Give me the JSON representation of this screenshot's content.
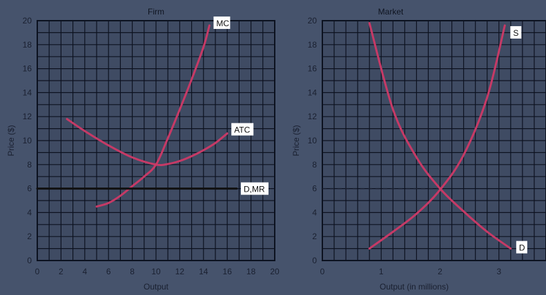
{
  "chart_data": [
    {
      "type": "line",
      "title": "Firm",
      "xlabel": "Output",
      "ylabel": "Price ($)",
      "xlim": [
        0,
        20
      ],
      "ylim": [
        0,
        20
      ],
      "xticks": [
        0,
        2,
        4,
        6,
        8,
        10,
        12,
        14,
        16,
        18,
        20
      ],
      "yticks": [
        0,
        2,
        4,
        6,
        8,
        10,
        12,
        14,
        16,
        18,
        20
      ],
      "grid": true,
      "series": [
        {
          "name": "MC",
          "color": "#c63a66",
          "x": [
            5,
            6,
            7,
            8,
            9,
            10,
            11,
            12,
            13,
            14,
            14.5
          ],
          "y": [
            4.5,
            4.8,
            5.4,
            6.2,
            7.0,
            8.0,
            10.2,
            12.6,
            15.1,
            17.8,
            19.6
          ]
        },
        {
          "name": "ATC",
          "color": "#c63a66",
          "x": [
            2.5,
            4,
            6,
            8,
            10,
            11,
            12,
            13,
            14,
            15,
            16
          ],
          "y": [
            11.8,
            10.8,
            9.6,
            8.6,
            8.0,
            8.05,
            8.3,
            8.7,
            9.2,
            9.8,
            10.6
          ]
        },
        {
          "name": "D,MR",
          "color": "#111111",
          "x": [
            0,
            16.8
          ],
          "y": [
            6,
            6
          ]
        }
      ]
    },
    {
      "type": "line",
      "title": "Market",
      "xlabel": "Output (in millions)",
      "ylabel": "Price ($)",
      "xlim": [
        0,
        3.8
      ],
      "ylim": [
        0,
        20
      ],
      "xticks": [
        0,
        1,
        2,
        3
      ],
      "yticks": [
        0,
        2,
        4,
        6,
        8,
        10,
        12,
        14,
        16,
        18,
        20
      ],
      "grid": true,
      "series": [
        {
          "name": "S",
          "color": "#c63a66",
          "x": [
            0.8,
            1.2,
            1.6,
            2.0,
            2.4,
            2.8,
            3.1
          ],
          "y": [
            1.0,
            2.4,
            3.9,
            5.9,
            8.8,
            13.6,
            19.6
          ]
        },
        {
          "name": "D",
          "color": "#c63a66",
          "x": [
            0.8,
            1.2,
            1.6,
            2.0,
            2.4,
            2.8,
            3.2
          ],
          "y": [
            19.8,
            12.6,
            8.6,
            6.0,
            4.1,
            2.4,
            1.0
          ]
        }
      ],
      "reference_lines": [
        {
          "y": 6,
          "x_from": 0,
          "x_to": 2,
          "style": "dashed"
        }
      ]
    }
  ]
}
